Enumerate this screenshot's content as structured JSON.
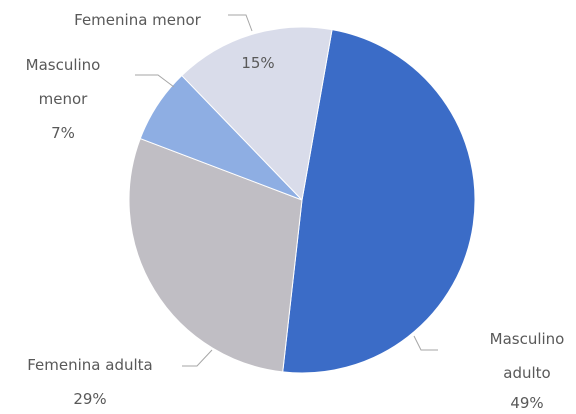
{
  "chart_data": {
    "type": "pie",
    "categories": [
      "Masculino adulto",
      "Femenina adulta",
      "Masculino menor",
      "Femenina menor"
    ],
    "values": [
      49,
      29,
      7,
      15
    ],
    "value_labels": [
      "49%",
      "29%",
      "7%",
      "15%"
    ],
    "colors": [
      "#3b6cc7",
      "#c0bec4",
      "#8eaee3",
      "#d9dcea"
    ]
  }
}
